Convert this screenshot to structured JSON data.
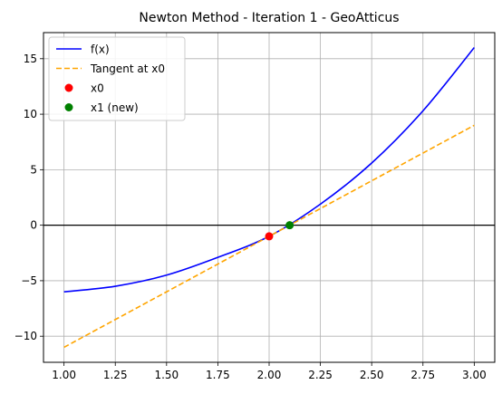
{
  "chart_data": {
    "type": "line",
    "title": "Newton Method - Iteration 1 - GeoAtticus",
    "xlabel": "",
    "ylabel": "",
    "xlim": [
      0.9,
      3.1
    ],
    "ylim": [
      -12.35,
      17.35
    ],
    "xticks": [
      1.0,
      1.25,
      1.5,
      1.75,
      2.0,
      2.25,
      2.5,
      2.75,
      3.0
    ],
    "xtick_labels": [
      "1.00",
      "1.25",
      "1.50",
      "1.75",
      "2.00",
      "2.25",
      "2.50",
      "2.75",
      "3.00"
    ],
    "yticks": [
      -10,
      -5,
      0,
      5,
      10,
      15
    ],
    "ytick_labels": [
      "−10",
      "−5",
      "0",
      "5",
      "10",
      "15"
    ],
    "grid": true,
    "horizontal_reference_line": {
      "y": 0,
      "color": "#000000"
    },
    "legend": {
      "placement": "upper-left"
    },
    "series": [
      {
        "name": "f(x)",
        "kind": "line",
        "color": "#0000ff",
        "style": "solid",
        "x": [
          1.0,
          1.25,
          1.5,
          1.75,
          2.0,
          2.25,
          2.5,
          2.75,
          3.0
        ],
        "y": [
          -6.0,
          -5.5,
          -4.5,
          -2.9,
          -1.0,
          1.9,
          5.6,
          10.3,
          16.0
        ]
      },
      {
        "name": "Tangent at x0",
        "kind": "line",
        "color": "#ffa500",
        "style": "dashed",
        "x": [
          1.0,
          3.0
        ],
        "y": [
          -11.0,
          9.0
        ]
      },
      {
        "name": "x0",
        "kind": "point",
        "color": "#ff0000",
        "x": [
          2.0
        ],
        "y": [
          -1.0
        ]
      },
      {
        "name": "x1 (new)",
        "kind": "point",
        "color": "#008000",
        "x": [
          2.1
        ],
        "y": [
          0.0
        ]
      }
    ]
  }
}
